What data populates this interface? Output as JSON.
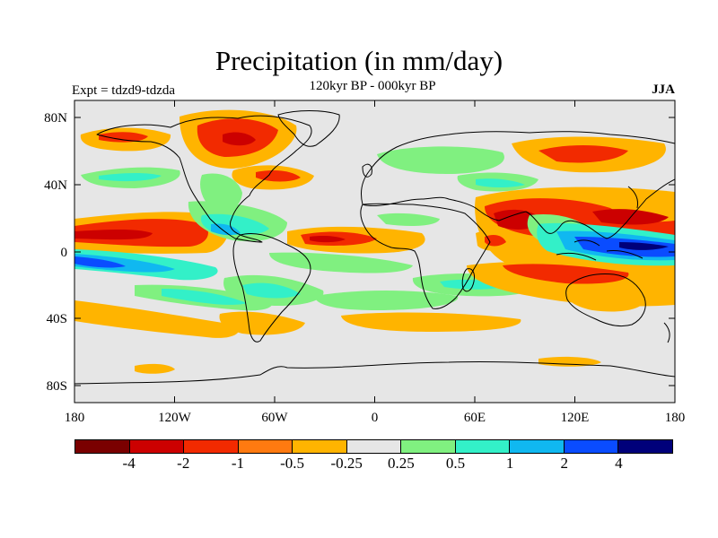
{
  "title": "Precipitation (in mm/day)",
  "subtitle": "120kyr BP - 000kyr BP",
  "experiment": "Expt = tdzd9-tdzda",
  "season": "JJA",
  "map": {
    "ocean_color": "#e6e6e6",
    "lat_ticks": [
      "80N",
      "40N",
      "0",
      "40S",
      "80S"
    ],
    "lon_ticks": [
      "180",
      "120W",
      "60W",
      "0",
      "60E",
      "120E",
      "180"
    ]
  },
  "colorbar": {
    "colors": [
      "#7a0000",
      "#cc0000",
      "#f22a00",
      "#ff7a10",
      "#ffb400",
      "#e6e6e6",
      "#80f080",
      "#33f0c8",
      "#10b8f0",
      "#0a4cff",
      "#00007a"
    ],
    "labels": [
      "-4",
      "-2",
      "-1",
      "-0.5",
      "-0.25",
      "0.25",
      "0.5",
      "1",
      "2",
      "4"
    ]
  },
  "legend_colors": {
    "dry_strong": "#cc0000",
    "dry": "#f22a00",
    "dry_mod": "#ff7a10",
    "dry_weak": "#ffb400",
    "wet_weak": "#80f080",
    "wet": "#33f0c8",
    "wet_mod": "#10b8f0",
    "wet_strong": "#0a4cff",
    "wet_max": "#00007a"
  }
}
